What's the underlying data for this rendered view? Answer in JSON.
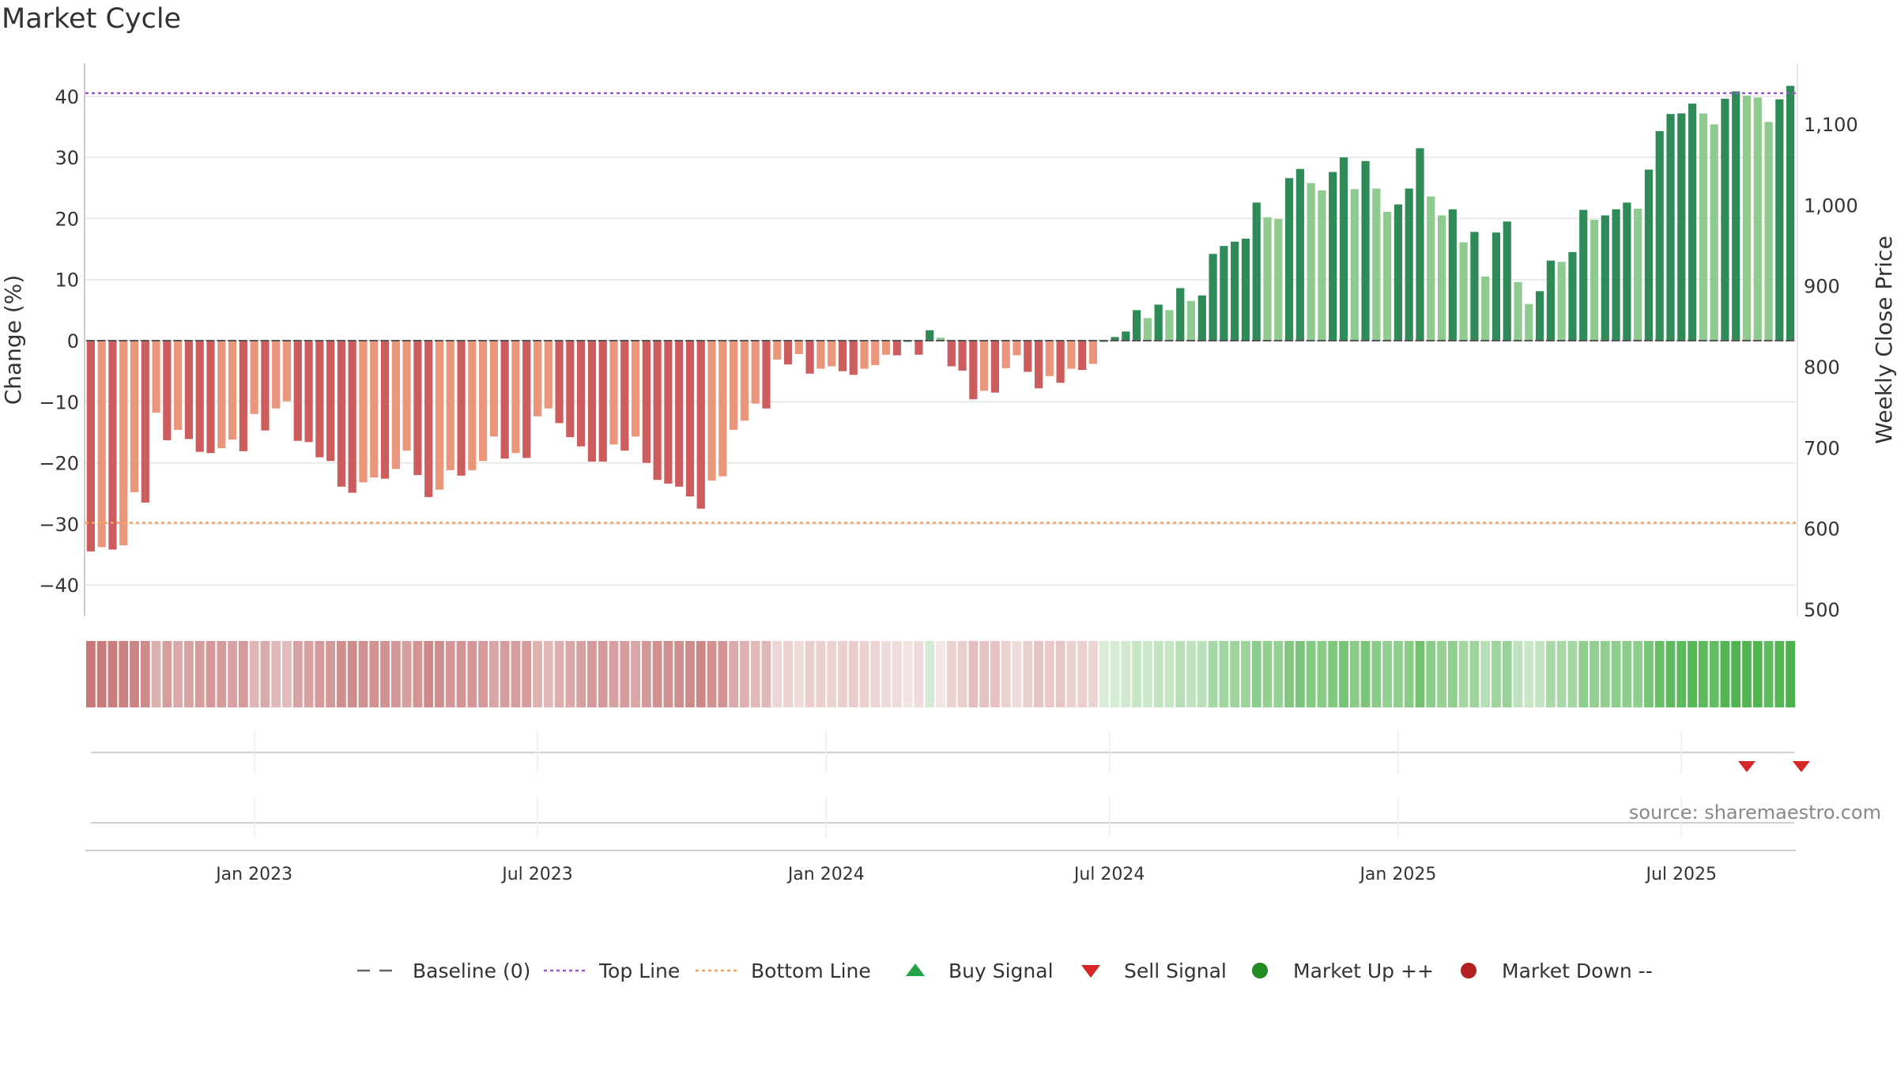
{
  "title": "Market Cycle",
  "source": "source: sharemaestro.com",
  "colors": {
    "neg_dark": "#cd5c5c",
    "neg_light": "#e9967a",
    "pos_dark": "#2e8b57",
    "pos_light": "#8fcb8f",
    "top_line": "#9b59d0",
    "bottom_line": "#f4a460",
    "baseline": "#555555",
    "sell": "#d62728",
    "buy": "#22a34a",
    "market_up": "#228b22",
    "market_down": "#b22222"
  },
  "legend": [
    {
      "key": "baseline",
      "label": "Baseline (0)",
      "symbol": "dash",
      "color": "#666666"
    },
    {
      "key": "top",
      "label": "Top Line",
      "symbol": "dot-line",
      "color": "#9b59d0"
    },
    {
      "key": "bottom",
      "label": "Bottom Line",
      "symbol": "dot-line",
      "color": "#f4a460"
    },
    {
      "key": "buy",
      "label": "Buy Signal",
      "symbol": "tri-up",
      "color": "#22a34a"
    },
    {
      "key": "sell",
      "label": "Sell Signal",
      "symbol": "tri-down",
      "color": "#d62728"
    },
    {
      "key": "up",
      "label": "Market Up ++",
      "symbol": "circle",
      "color": "#228b22"
    },
    {
      "key": "down",
      "label": "Market Down --",
      "symbol": "circle",
      "color": "#b22222"
    }
  ],
  "chart_data": {
    "type": "bar",
    "ylabel": "Change (%)",
    "y2label": "Weekly Close Price",
    "ylim": [
      -45,
      45
    ],
    "y_ticks": [
      40,
      30,
      20,
      10,
      0,
      -10,
      -20,
      -30,
      -40
    ],
    "y2lim": [
      487,
      1167
    ],
    "y2_ticks": [
      1100,
      1000,
      900,
      800,
      700,
      600,
      500
    ],
    "top_line": 40.5,
    "bottom_line": -29.8,
    "baseline": 0,
    "x_tick_labels": [
      "Jan 2023",
      "Jul 2023",
      "Jan 2024",
      "Jul 2024",
      "Jan 2025",
      "Jul 2025"
    ],
    "x_tick_weeks": [
      15,
      41,
      67.5,
      93.5,
      120,
      146
    ],
    "sell_signal_weeks": [
      152,
      157
    ],
    "buy_signal_weeks": [],
    "values": [
      -34.5,
      -33.8,
      -34.2,
      -33.5,
      -24.8,
      -26.5,
      -11.8,
      -16.3,
      -14.6,
      -16.1,
      -18.2,
      -18.4,
      -17.6,
      -16.2,
      -18.1,
      -12,
      -14.7,
      -11.1,
      -9.9,
      -16.4,
      -16.6,
      -19.1,
      -19.7,
      -23.9,
      -24.9,
      -23.2,
      -22.4,
      -22.6,
      -21,
      -18,
      -22,
      -25.6,
      -24.4,
      -21.2,
      -22.1,
      -21.2,
      -19.7,
      -15.7,
      -19.3,
      -18.4,
      -19.2,
      -12.4,
      -11.1,
      -13.5,
      -15.8,
      -17.3,
      -19.8,
      -19.8,
      -17,
      -18,
      -15.7,
      -20,
      -22.8,
      -23.4,
      -23.9,
      -25.5,
      -27.5,
      -22.9,
      -22.2,
      -14.6,
      -13.1,
      -10.3,
      -11.1,
      -3.1,
      -3.9,
      -2.2,
      -5.4,
      -4.6,
      -4.2,
      -5,
      -5.6,
      -4.6,
      -4,
      -2.3,
      -2.4,
      0,
      -2.3,
      1.7,
      0.5,
      -4.2,
      -4.9,
      -9.6,
      -8.2,
      -8.5,
      -4.5,
      -2.4,
      -5.1,
      -7.8,
      -5.8,
      -6.9,
      -4.6,
      -4.8,
      -3.8,
      0,
      0.6,
      1.5,
      5,
      3.7,
      5.9,
      5,
      8.6,
      6.5,
      7.4,
      14.2,
      15.5,
      16.2,
      16.7,
      22.6,
      20.2,
      19.9,
      26.6,
      28.1,
      25.8,
      24.6,
      27.6,
      30,
      24.8,
      29.4,
      24.9,
      21.1,
      22.3,
      24.9,
      31.5,
      23.6,
      20.5,
      21.5,
      16.1,
      17.8,
      10.5,
      17.7,
      19.5,
      9.6,
      6,
      8.1,
      13.1,
      12.9,
      14.5,
      21.4,
      19.8,
      20.5,
      21.5,
      22.6,
      21.6,
      28,
      34.3,
      37.1,
      37.2,
      38.8,
      37.2,
      35.4,
      39.6,
      40.8,
      40.1,
      39.8,
      35.8,
      39.5,
      41.7
    ],
    "heat_colors": [
      "#c77777",
      "#c97a7a",
      "#ca7d7d",
      "#cb8181",
      "#cc8383",
      "#cf8a8a",
      "#ddb0b0",
      "#d79e9e",
      "#dca9a9",
      "#d9a3a3",
      "#d69b9b",
      "#d59898",
      "#d69b9b",
      "#d9a1a1",
      "#d69a9a",
      "#e0b5b5",
      "#dbaaaa",
      "#e1b8b8",
      "#e2bcbc",
      "#d9a2a2",
      "#d9a2a2",
      "#d69a9a",
      "#d59898",
      "#d08e8e",
      "#cf8c8c",
      "#d19090",
      "#d29292",
      "#d29292",
      "#d49696",
      "#d89f9f",
      "#d39494",
      "#ce8a8a",
      "#d08d8d",
      "#d49696",
      "#d39494",
      "#d49696",
      "#d69a9a",
      "#daa5a5",
      "#d69b9b",
      "#d79e9e",
      "#d69b9b",
      "#dfb1b1",
      "#e1b8b8",
      "#ddaeae",
      "#daa6a6",
      "#d8a1a1",
      "#d59999",
      "#d59999",
      "#d8a0a0",
      "#d69c9c",
      "#daa6a6",
      "#d59898",
      "#d29191",
      "#d19090",
      "#d08e8e",
      "#ce8b8b",
      "#cc8686",
      "#d29292",
      "#d39393",
      "#dcaaaa",
      "#deb0b0",
      "#e1b9b9",
      "#e1b8b8",
      "#eed5d5",
      "#ecd1d1",
      "#f0dada",
      "#ebcdcd",
      "#ecd0d0",
      "#edd2d2",
      "#ebcfcf",
      "#eacccc",
      "#ecd0d0",
      "#edd3d3",
      "#f0dbdb",
      "#f0dbdb",
      "#f3e3e3",
      "#f0dbdb",
      "#d3ead3",
      "#f3e6e6",
      "#edd2d2",
      "#ebcfcf",
      "#e5bdbd",
      "#e7c2c2",
      "#e6c1c1",
      "#ecd1d1",
      "#f0dbdb",
      "#ebcfcf",
      "#e7c4c4",
      "#eac9c9",
      "#e8c6c6",
      "#ecd0d0",
      "#ecd0d0",
      "#eed3d3",
      "#d9eed9",
      "#d5ecd5",
      "#d1eacf",
      "#c6e6c4",
      "#cbe8ca",
      "#c2e4c1",
      "#c6e6c4",
      "#b6dfb5",
      "#c0e3bf",
      "#bbe1ba",
      "#a6d8a5",
      "#a2d6a1",
      "#9fd59d",
      "#9dd49c",
      "#8bcd8a",
      "#93d091",
      "#94d193",
      "#7fc87e",
      "#7bc67a",
      "#85ca84",
      "#89cc88",
      "#7fc87e",
      "#78c577",
      "#89cc88",
      "#7bc67a",
      "#88cc87",
      "#93d091",
      "#8fcf8e",
      "#88cc87",
      "#72c271",
      "#8acc89",
      "#94d193",
      "#90cf8f",
      "#a4d7a3",
      "#9dd49c",
      "#b6dfb5",
      "#9ed49d",
      "#98d297",
      "#bee2bd",
      "#c8e7c7",
      "#c2e4c1",
      "#a8d9a7",
      "#aad9a9",
      "#a5d7a4",
      "#8ecf8d",
      "#93d091",
      "#90cf8f",
      "#8ecf8d",
      "#8bcd8a",
      "#8ecf8d",
      "#77c576",
      "#66be65",
      "#5eba5d",
      "#5dba5c",
      "#58b857",
      "#5eba5d",
      "#63bc62",
      "#54b653",
      "#50b44f",
      "#52b551",
      "#52b551",
      "#5fbb5e",
      "#55b654",
      "#4db24c"
    ]
  }
}
